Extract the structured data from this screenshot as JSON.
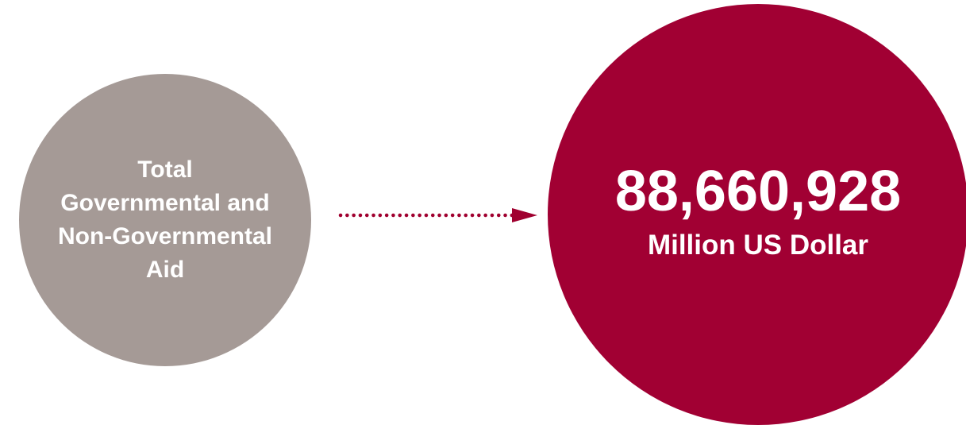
{
  "source_node": {
    "label": "Total\nGovernmental and\nNon-Governmental\nAid",
    "color": "#a59a96"
  },
  "connector": {
    "style": "dotted-arrow",
    "color": "#a0002f"
  },
  "target_node": {
    "value": "88,660,928",
    "unit": "Million US Dollar",
    "color": "#a10033"
  }
}
